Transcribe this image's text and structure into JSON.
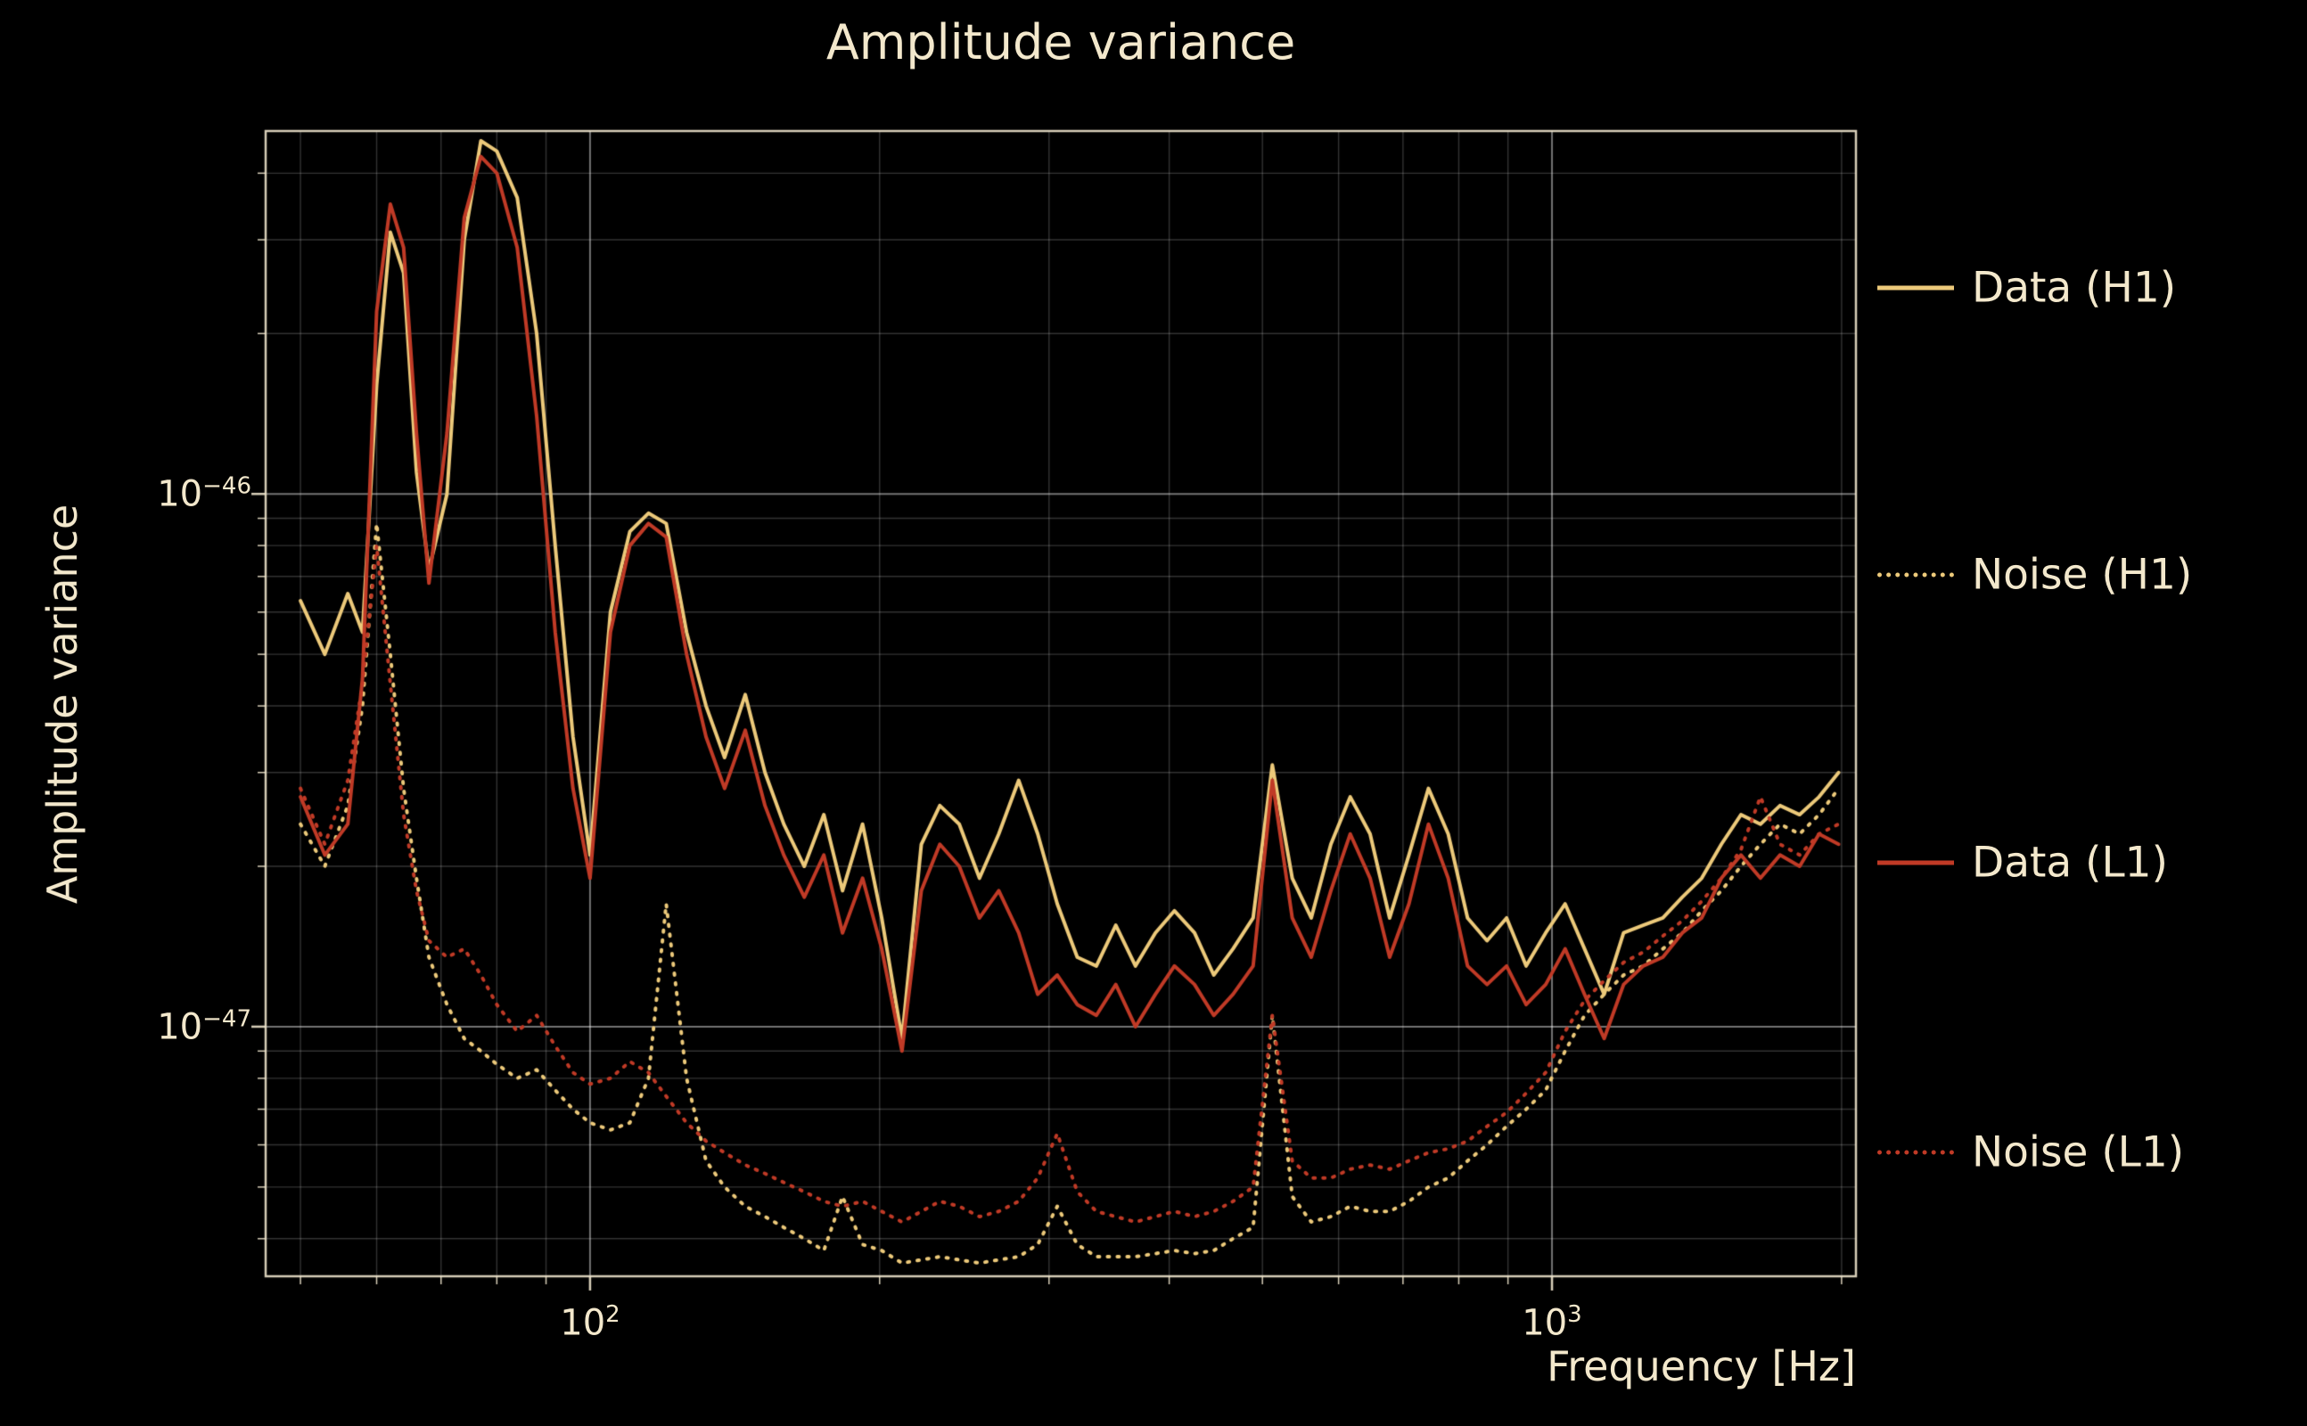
{
  "title": "Amplitude variance",
  "axes": {
    "xlabel": "Frequency [Hz]",
    "ylabel": "Amplitude variance",
    "x_ticks": [
      {
        "base": "10",
        "exp": "2"
      },
      {
        "base": "10",
        "exp": "3"
      }
    ],
    "y_ticks": [
      {
        "base": "10",
        "exp": "−46"
      },
      {
        "base": "10",
        "exp": "−47"
      }
    ]
  },
  "colors": {
    "background": "#000000",
    "text": "#f3e8cc",
    "h1": "#ecc97a",
    "l1": "#c03a26",
    "grid_major": "rgba(255,255,255,0.45)",
    "grid_minor": "rgba(255,255,255,0.20)",
    "frame": "rgba(238,228,204,0.9)"
  },
  "chart_data": {
    "type": "line",
    "title": "Amplitude variance",
    "xlabel": "Frequency [Hz]",
    "ylabel": "Amplitude variance",
    "x_scale": "log",
    "y_scale": "log",
    "xlim": [
      46,
      2070
    ],
    "ylim": [
      3.4e-48,
      4.8e-46
    ],
    "grid": true,
    "legend_position": "right",
    "x": [
      50,
      53,
      56,
      58,
      60,
      62,
      64,
      66,
      68,
      71,
      74,
      77,
      80,
      84,
      88,
      92,
      96,
      100,
      105,
      110,
      115,
      120,
      126,
      132,
      138,
      145,
      152,
      159,
      167,
      175,
      183,
      192,
      201,
      211,
      221,
      231,
      242,
      254,
      266,
      279,
      292,
      306,
      321,
      336,
      352,
      369,
      387,
      405,
      425,
      445,
      466,
      489,
      512,
      537,
      562,
      589,
      617,
      647,
      678,
      710,
      744,
      780,
      817,
      856,
      897,
      940,
      985,
      1032,
      1081,
      1133,
      1187,
      1244,
      1304,
      1366,
      1431,
      1500,
      1572,
      1647,
      1726,
      1809,
      1895,
      1986
    ],
    "series": [
      {
        "name": "Data (H1)",
        "style": "solid",
        "color": "#ecc97a",
        "values": [
          6.3e-47,
          5e-47,
          6.5e-47,
          5.5e-47,
          1.6e-46,
          3.1e-46,
          2.6e-46,
          1.1e-46,
          7.2e-47,
          1e-46,
          3e-46,
          4.6e-46,
          4.4e-46,
          3.6e-46,
          2e-46,
          8e-47,
          3.5e-47,
          2.1e-47,
          6e-47,
          8.5e-47,
          9.2e-47,
          8.8e-47,
          5.5e-47,
          4e-47,
          3.2e-47,
          4.2e-47,
          3e-47,
          2.4e-47,
          2e-47,
          2.5e-47,
          1.8e-47,
          2.4e-47,
          1.6e-47,
          9.5e-48,
          2.2e-47,
          2.6e-47,
          2.4e-47,
          1.9e-47,
          2.3e-47,
          2.9e-47,
          2.3e-47,
          1.7e-47,
          1.35e-47,
          1.3e-47,
          1.55e-47,
          1.3e-47,
          1.5e-47,
          1.65e-47,
          1.5e-47,
          1.25e-47,
          1.4e-47,
          1.6e-47,
          3.1e-47,
          1.9e-47,
          1.6e-47,
          2.2e-47,
          2.7e-47,
          2.3e-47,
          1.6e-47,
          2.1e-47,
          2.8e-47,
          2.3e-47,
          1.6e-47,
          1.45e-47,
          1.6e-47,
          1.3e-47,
          1.5e-47,
          1.7e-47,
          1.4e-47,
          1.15e-47,
          1.5e-47,
          1.55e-47,
          1.6e-47,
          1.75e-47,
          1.9e-47,
          2.2e-47,
          2.5e-47,
          2.4e-47,
          2.6e-47,
          2.5e-47,
          2.7e-47,
          3e-47
        ]
      },
      {
        "name": "Noise (H1)",
        "style": "dotted",
        "color": "#ecc97a",
        "values": [
          2.4e-47,
          2e-47,
          2.6e-47,
          4e-47,
          8.8e-47,
          5e-47,
          2.8e-47,
          1.9e-47,
          1.35e-47,
          1.1e-47,
          9.5e-48,
          9e-48,
          8.5e-48,
          8e-48,
          8.3e-48,
          7.6e-48,
          7e-48,
          6.6e-48,
          6.4e-48,
          6.6e-48,
          8e-48,
          1.7e-47,
          8e-48,
          5.6e-48,
          5e-48,
          4.6e-48,
          4.4e-48,
          4.2e-48,
          4e-48,
          3.8e-48,
          4.8e-48,
          3.9e-48,
          3.8e-48,
          3.6e-48,
          3.65e-48,
          3.7e-48,
          3.65e-48,
          3.6e-48,
          3.65e-48,
          3.7e-48,
          3.9e-48,
          4.6e-48,
          3.9e-48,
          3.7e-48,
          3.7e-48,
          3.7e-48,
          3.75e-48,
          3.8e-48,
          3.75e-48,
          3.8e-48,
          4e-48,
          4.2e-48,
          1.05e-47,
          4.8e-48,
          4.3e-48,
          4.4e-48,
          4.6e-48,
          4.5e-48,
          4.5e-48,
          4.7e-48,
          5e-48,
          5.2e-48,
          5.6e-48,
          6e-48,
          6.5e-48,
          7e-48,
          7.6e-48,
          9e-48,
          1.05e-47,
          1.15e-47,
          1.25e-47,
          1.3e-47,
          1.4e-47,
          1.5e-47,
          1.65e-47,
          1.8e-47,
          2e-47,
          2.2e-47,
          2.4e-47,
          2.3e-47,
          2.5e-47,
          2.8e-47
        ]
      },
      {
        "name": "Data (L1)",
        "style": "solid",
        "color": "#c03a26",
        "values": [
          2.7e-47,
          2.1e-47,
          2.4e-47,
          4.5e-47,
          2.2e-46,
          3.5e-46,
          2.9e-46,
          1.3e-46,
          6.8e-47,
          1.3e-46,
          3.3e-46,
          4.3e-46,
          4e-46,
          2.9e-46,
          1.4e-46,
          5.5e-47,
          2.8e-47,
          1.9e-47,
          5.5e-47,
          8e-47,
          8.8e-47,
          8.3e-47,
          5e-47,
          3.5e-47,
          2.8e-47,
          3.6e-47,
          2.6e-47,
          2.1e-47,
          1.75e-47,
          2.1e-47,
          1.5e-47,
          1.9e-47,
          1.4e-47,
          9e-48,
          1.8e-47,
          2.2e-47,
          2e-47,
          1.6e-47,
          1.8e-47,
          1.5e-47,
          1.15e-47,
          1.25e-47,
          1.1e-47,
          1.05e-47,
          1.2e-47,
          1e-47,
          1.15e-47,
          1.3e-47,
          1.2e-47,
          1.05e-47,
          1.15e-47,
          1.3e-47,
          2.9e-47,
          1.6e-47,
          1.35e-47,
          1.8e-47,
          2.3e-47,
          1.9e-47,
          1.35e-47,
          1.7e-47,
          2.4e-47,
          1.9e-47,
          1.3e-47,
          1.2e-47,
          1.3e-47,
          1.1e-47,
          1.2e-47,
          1.4e-47,
          1.15e-47,
          9.5e-48,
          1.2e-47,
          1.3e-47,
          1.35e-47,
          1.5e-47,
          1.6e-47,
          1.9e-47,
          2.1e-47,
          1.9e-47,
          2.1e-47,
          2e-47,
          2.3e-47,
          2.2e-47
        ]
      },
      {
        "name": "Noise (L1)",
        "style": "dotted",
        "color": "#c03a26",
        "values": [
          2.8e-47,
          2.2e-47,
          2.9e-47,
          4.4e-47,
          8e-47,
          4.4e-47,
          2.5e-47,
          1.8e-47,
          1.45e-47,
          1.35e-47,
          1.4e-47,
          1.25e-47,
          1.1e-47,
          9.8e-48,
          1.05e-47,
          9.2e-48,
          8.2e-48,
          7.8e-48,
          8e-48,
          8.6e-48,
          8.2e-48,
          7.4e-48,
          6.6e-48,
          6.1e-48,
          5.8e-48,
          5.5e-48,
          5.3e-48,
          5.1e-48,
          4.9e-48,
          4.7e-48,
          4.6e-48,
          4.7e-48,
          4.5e-48,
          4.3e-48,
          4.5e-48,
          4.7e-48,
          4.6e-48,
          4.4e-48,
          4.5e-48,
          4.7e-48,
          5.2e-48,
          6.3e-48,
          4.9e-48,
          4.5e-48,
          4.4e-48,
          4.3e-48,
          4.4e-48,
          4.5e-48,
          4.4e-48,
          4.5e-48,
          4.7e-48,
          5e-48,
          1.05e-47,
          5.6e-48,
          5.2e-48,
          5.2e-48,
          5.4e-48,
          5.5e-48,
          5.4e-48,
          5.6e-48,
          5.8e-48,
          5.9e-48,
          6.1e-48,
          6.5e-48,
          6.9e-48,
          7.5e-48,
          8.2e-48,
          9.8e-48,
          1.12e-47,
          1.22e-47,
          1.32e-47,
          1.38e-47,
          1.48e-47,
          1.58e-47,
          1.72e-47,
          1.9e-47,
          2.15e-47,
          2.7e-47,
          2.2e-47,
          2.1e-47,
          2.3e-47,
          2.4e-47
        ]
      }
    ]
  }
}
